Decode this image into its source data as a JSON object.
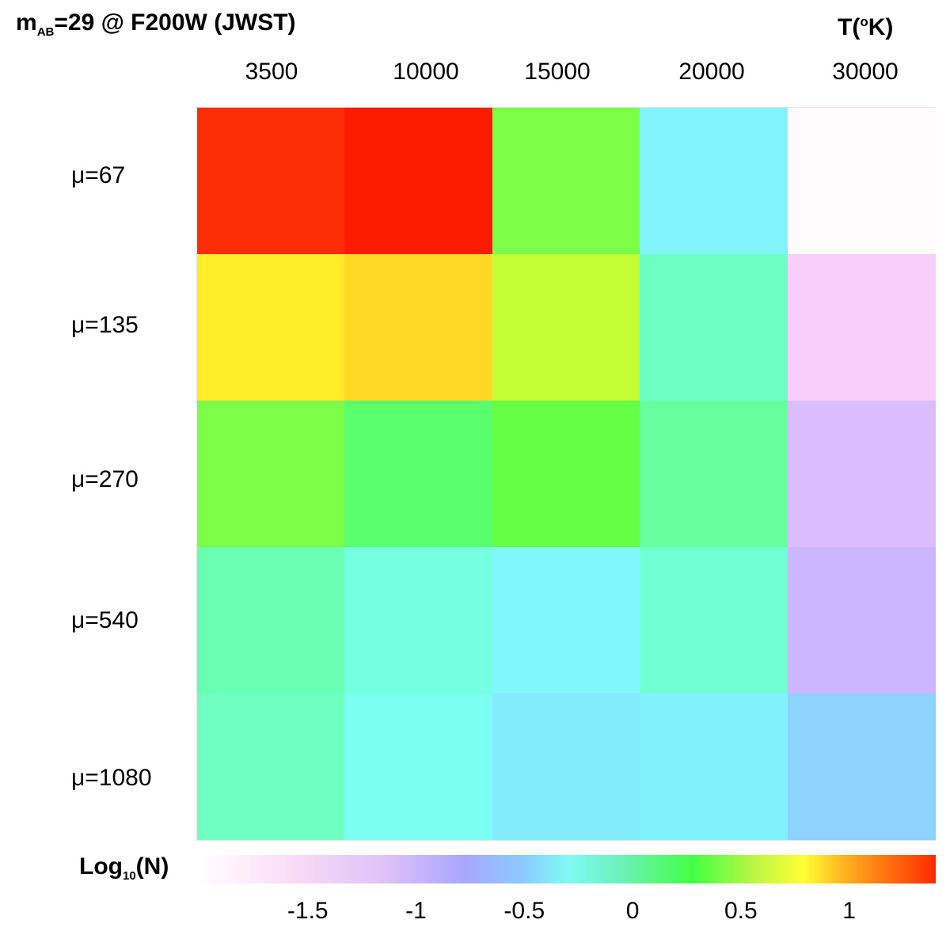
{
  "title_parts": {
    "m": "m",
    "sub": "AB",
    "rest": "=29 @ F200W (JWST)"
  },
  "temperature_unit": {
    "base": "T(",
    "sup": "o",
    "end": "K)"
  },
  "colorbar_title": {
    "base": "Log",
    "sub": "10",
    "end": "(N)"
  },
  "colorbar_ticks": [
    "-1.5",
    "-1",
    "-0.5",
    "0",
    "0.5",
    "1"
  ],
  "colorbar_tick_values": [
    -1.5,
    -1,
    -0.5,
    0,
    0.5,
    1
  ],
  "chart_data": {
    "type": "heatmap",
    "x_categories": [
      "3500",
      "10000",
      "15000",
      "20000",
      "30000"
    ],
    "y_categories": [
      "μ=67",
      "μ=135",
      "μ=270",
      "μ=540",
      "μ=1080"
    ],
    "z_label": "Log10(N)",
    "colorbar_range": [
      -2.0,
      1.4
    ],
    "values": [
      [
        1.3,
        1.35,
        0.3,
        -0.4,
        -2.0
      ],
      [
        0.85,
        0.9,
        0.6,
        0.0,
        -1.6
      ],
      [
        0.4,
        0.2,
        0.3,
        0.05,
        -1.1
      ],
      [
        0.05,
        -0.1,
        -0.35,
        -0.05,
        -1.0
      ],
      [
        0.0,
        -0.25,
        -0.45,
        -0.4,
        -0.65
      ]
    ],
    "cell_colors": [
      [
        "#ff2d06",
        "#ff1b00",
        "#7bff47",
        "#80f3fd",
        "#fffbfd"
      ],
      [
        "#ffed29",
        "#ffd825",
        "#c4ff35",
        "#6cffc4",
        "#facefb"
      ],
      [
        "#7bff47",
        "#59ff6c",
        "#65ff48",
        "#66ff9e",
        "#d9bdfd"
      ],
      [
        "#69ffb3",
        "#76ffe1",
        "#80f7fd",
        "#70ffd0",
        "#ccb6fe"
      ],
      [
        "#6fffc1",
        "#7bfff0",
        "#84ebfd",
        "#81f1fd",
        "#8ed3ff"
      ]
    ]
  }
}
